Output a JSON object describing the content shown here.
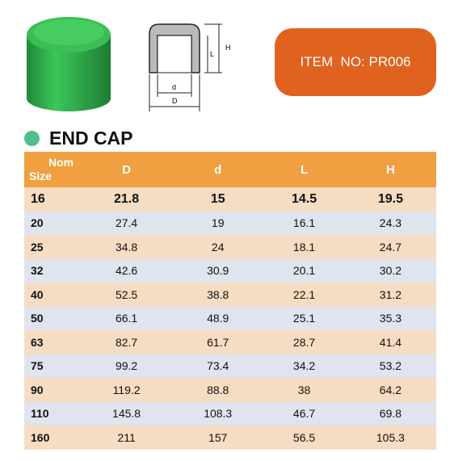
{
  "header": {
    "item_no": "ITEM  NO: PR006",
    "title": "END CAP"
  },
  "drawing": {
    "labels": {
      "H": "H",
      "L": "L",
      "d": "d",
      "D": "D"
    }
  },
  "table": {
    "corner": {
      "top": "Nom",
      "bottom": "Size"
    },
    "columns": [
      "D",
      "d",
      "L",
      "H"
    ],
    "rows": [
      [
        16,
        21.8,
        15,
        14.5,
        19.5
      ],
      [
        20,
        27.4,
        19,
        16.1,
        24.3
      ],
      [
        25,
        34.8,
        24,
        18.1,
        24.7
      ],
      [
        32,
        42.6,
        30.9,
        20.1,
        30.2
      ],
      [
        40,
        52.5,
        38.8,
        22.1,
        31.2
      ],
      [
        50,
        66.1,
        48.9,
        25.1,
        35.3
      ],
      [
        63,
        82.7,
        61.7,
        28.7,
        41.4
      ],
      [
        75,
        99.2,
        73.4,
        34.2,
        53.2
      ],
      [
        90,
        119.2,
        88.8,
        38,
        64.2
      ],
      [
        110,
        145.8,
        108.3,
        46.7,
        69.8
      ],
      [
        160,
        211,
        157,
        56.5,
        105.3
      ]
    ]
  }
}
